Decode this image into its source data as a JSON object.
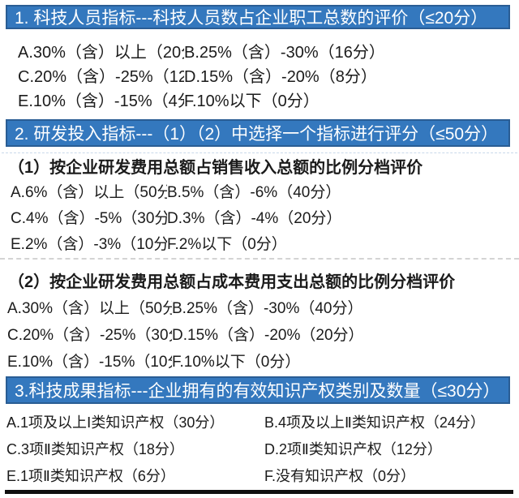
{
  "page": {
    "background": "#ffffff",
    "accent_blue": "#3478BE",
    "accent_blue_border": "#2a5d94",
    "text_color": "#1b1b1b",
    "bottom_rule_color": "#101010"
  },
  "sections": [
    {
      "header": "1. 科技人员指标---科技人员数占企业职工总数的评价（≤20分）",
      "rows": [
        [
          "A.30%（含）以上（20分）",
          "B.25%（含）-30%（16分）"
        ],
        [
          "C.20%（含）-25%（12分）",
          "D.15%（含）-20%（8分）"
        ],
        [
          "E.10%（含）-15%（4分）",
          "F.10%以下（0分）"
        ]
      ]
    },
    {
      "header": "2. 研发投入指标---（1）（2）中选择一个指标进行评分（≤50分）",
      "subsections": [
        {
          "title": "（1）按企业研发费用总额占销售收入总额的比例分档评价",
          "rows": [
            [
              "A.6%（含）以上（50分）",
              "B.5%（含）-6%（40分）"
            ],
            [
              "C.4%（含）-5%（30分）",
              "D.3%（含）-4%（20分）"
            ],
            [
              "E.2%（含）-3%（10分）",
              "F.2%以下（0分）"
            ]
          ]
        },
        {
          "title": "（2）按企业研发费用总额占成本费用支出总额的比例分档评价",
          "rows": [
            [
              "A.30%（含）以上（50分）",
              "B.25%（含）-30%（40分）"
            ],
            [
              "C.20%（含）-25%（30分）",
              "D.15%（含）-20%（20分）"
            ],
            [
              "E.10%（含）-15%（10分）",
              "F.10%以下（0分）"
            ]
          ]
        }
      ]
    },
    {
      "header": "3.科技成果指标---企业拥有的有效知识产权类别及数量（≤30分）",
      "rows": [
        [
          "A.1项及以上Ⅰ类知识产权（30分）",
          "B.4项及以上Ⅱ类知识产权（24分）"
        ],
        [
          "C.3项Ⅱ类知识产权（18分）",
          "D.2项Ⅱ类知识产权（12分）"
        ],
        [
          "E.1项Ⅱ类知识产权（6分）",
          "F.没有知识产权（0分）"
        ]
      ]
    }
  ]
}
